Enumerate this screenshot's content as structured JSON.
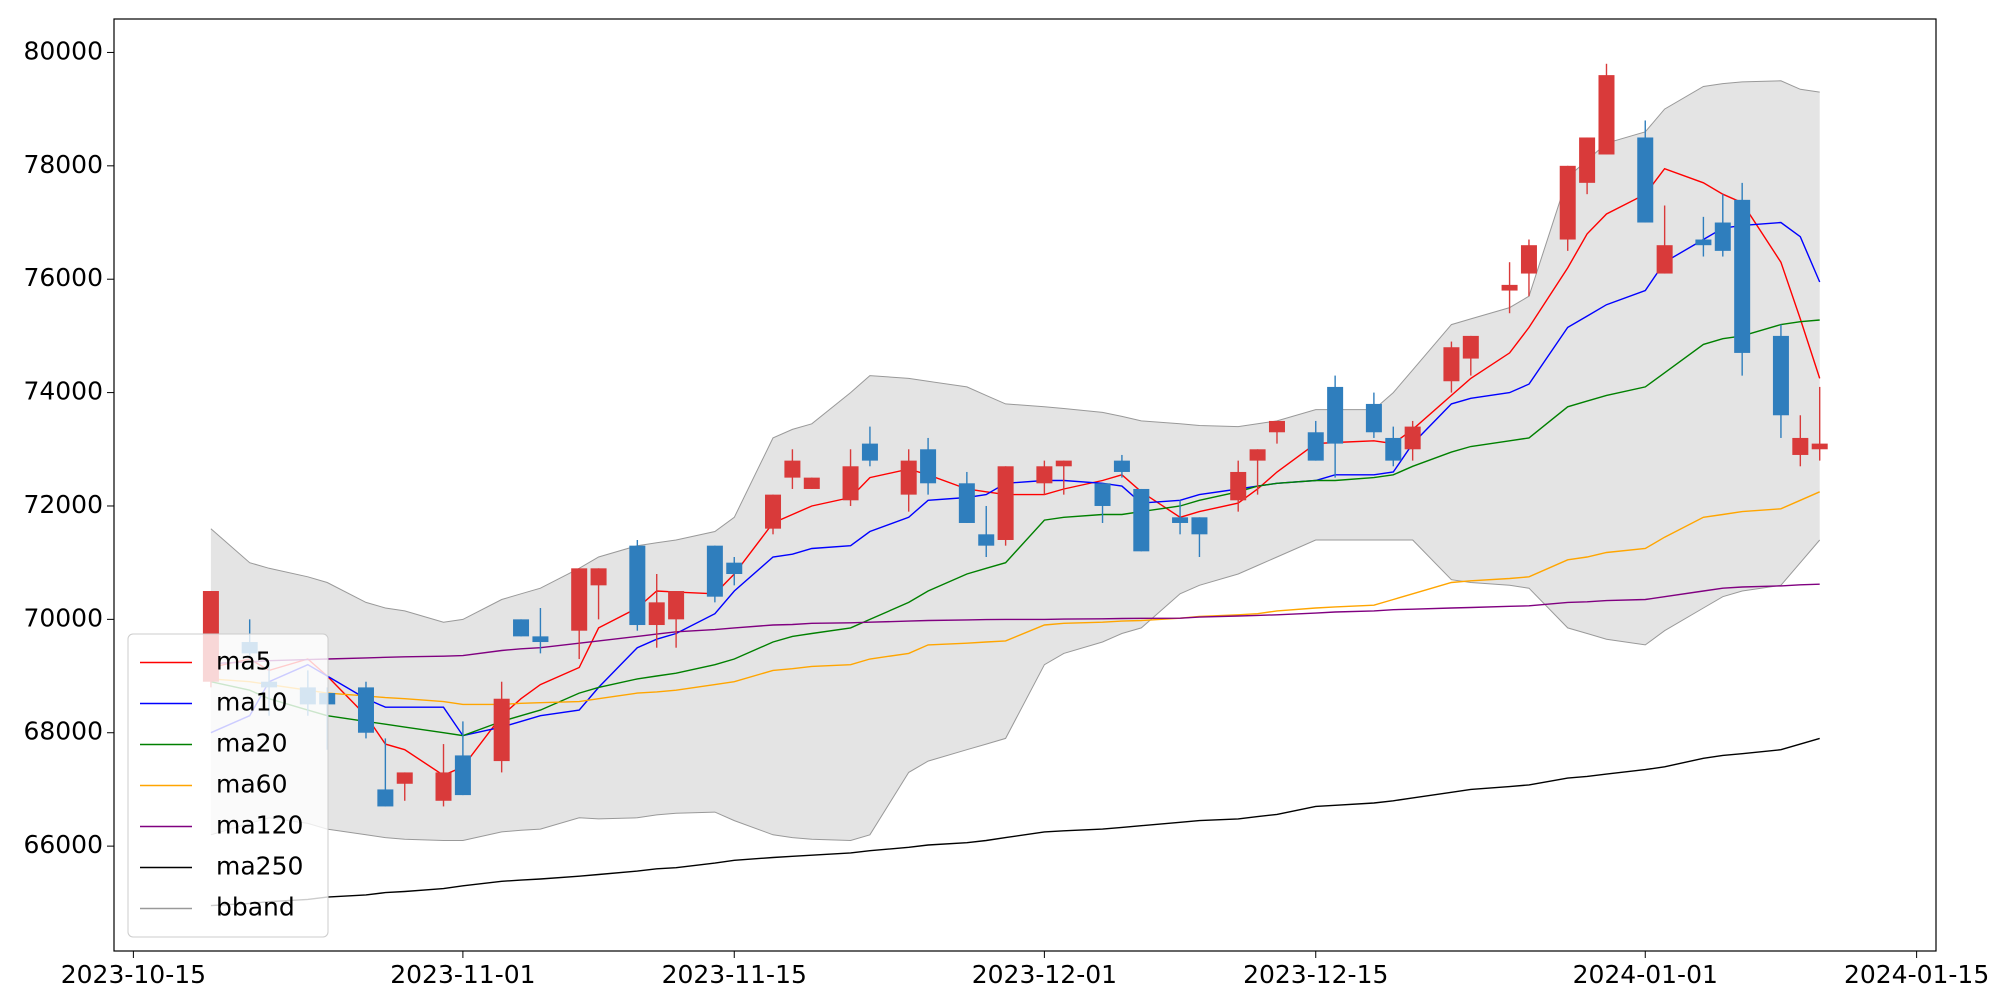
{
  "chart_data": {
    "type": "candlestick",
    "x": [
      "2023-10-19",
      "2023-10-21",
      "2023-10-22",
      "2023-10-24",
      "2023-10-25",
      "2023-10-27",
      "2023-10-28",
      "2023-10-29",
      "2023-10-31",
      "2023-11-01",
      "2023-11-03",
      "2023-11-04",
      "2023-11-05",
      "2023-11-07",
      "2023-11-08",
      "2023-11-10",
      "2023-11-11",
      "2023-11-12",
      "2023-11-14",
      "2023-11-15",
      "2023-11-17",
      "2023-11-18",
      "2023-11-19",
      "2023-11-21",
      "2023-11-22",
      "2023-11-24",
      "2023-11-25",
      "2023-11-27",
      "2023-11-28",
      "2023-11-29",
      "2023-12-01",
      "2023-12-02",
      "2023-12-04",
      "2023-12-05",
      "2023-12-06",
      "2023-12-08",
      "2023-12-09",
      "2023-12-11",
      "2023-12-12",
      "2023-12-13",
      "2023-12-15",
      "2023-12-16",
      "2023-12-18",
      "2023-12-19",
      "2023-12-20",
      "2023-12-22",
      "2023-12-23",
      "2023-12-25",
      "2023-12-26",
      "2023-12-28",
      "2023-12-29",
      "2023-12-30",
      "2024-01-01",
      "2024-01-02",
      "2024-01-04",
      "2024-01-05",
      "2024-01-06",
      "2024-01-08",
      "2024-01-09",
      "2024-01-10"
    ],
    "open": [
      68900,
      69600,
      68900,
      68800,
      68700,
      68800,
      67000,
      67100,
      66800,
      67600,
      67500,
      70000,
      69700,
      69800,
      70600,
      71300,
      69900,
      70000,
      71300,
      71000,
      71600,
      72500,
      72300,
      72100,
      73100,
      72200,
      73000,
      72400,
      71500,
      71400,
      72400,
      72700,
      72400,
      72800,
      72300,
      71800,
      71800,
      72100,
      72800,
      73300,
      73300,
      74100,
      73800,
      73200,
      73000,
      74200,
      74600,
      75800,
      76100,
      76700,
      77700,
      78200,
      78500,
      76100,
      76700,
      77000,
      77400,
      75000,
      72900,
      73000
    ],
    "high": [
      70500,
      70000,
      69200,
      69100,
      68800,
      68900,
      67900,
      67300,
      67800,
      68200,
      68900,
      70000,
      70200,
      70900,
      70900,
      71400,
      70800,
      70500,
      71300,
      71100,
      72200,
      73000,
      72500,
      73000,
      73400,
      73000,
      73200,
      72600,
      72000,
      72700,
      72800,
      72800,
      72400,
      72900,
      72300,
      72100,
      71800,
      72800,
      73000,
      73500,
      73500,
      74300,
      74000,
      73400,
      73500,
      74900,
      75000,
      76300,
      76700,
      78000,
      78500,
      79800,
      78800,
      77300,
      77100,
      77500,
      77700,
      75200,
      73600,
      74100
    ],
    "low": [
      68800,
      69300,
      68300,
      68300,
      67700,
      67900,
      66700,
      66800,
      66700,
      66900,
      67300,
      69700,
      69400,
      69300,
      70000,
      69800,
      69500,
      69500,
      70300,
      70600,
      71500,
      72300,
      72300,
      72000,
      72700,
      71900,
      72200,
      71700,
      71100,
      71300,
      72200,
      72200,
      71700,
      72500,
      71200,
      71500,
      71100,
      71900,
      72200,
      73100,
      72800,
      72500,
      73200,
      72700,
      72800,
      74000,
      74300,
      75400,
      75700,
      76500,
      77500,
      78200,
      77000,
      76100,
      76400,
      76400,
      74300,
      73200,
      72700,
      72800
    ],
    "close": [
      70500,
      69400,
      68800,
      68500,
      68500,
      68000,
      66700,
      67300,
      67300,
      66900,
      68600,
      69700,
      69600,
      70900,
      70900,
      69900,
      70300,
      70500,
      70400,
      70800,
      72200,
      72800,
      72500,
      72700,
      72800,
      72800,
      72400,
      71700,
      71300,
      72700,
      72700,
      72800,
      72000,
      72600,
      71200,
      71700,
      71500,
      72600,
      73000,
      73500,
      72800,
      73100,
      73300,
      72800,
      73400,
      74800,
      75000,
      75900,
      76600,
      78000,
      78500,
      79600,
      77000,
      76600,
      76600,
      76500,
      74700,
      73600,
      73200,
      73100
    ],
    "up_color": "#d93a3a",
    "down_color": "#2f7ebd",
    "series": [
      {
        "name": "ma5",
        "color": "#ff0000",
        "values": [
          69150,
          69300,
          69100,
          69300,
          69000,
          68300,
          67800,
          67700,
          67250,
          67400,
          68300,
          68600,
          68850,
          69150,
          69850,
          70200,
          70500,
          70480,
          70450,
          70800,
          71700,
          71850,
          72000,
          72150,
          72500,
          72650,
          72550,
          72300,
          72250,
          72200,
          72200,
          72300,
          72450,
          72550,
          72250,
          71800,
          71900,
          72050,
          72300,
          72600,
          73100,
          73120,
          73150,
          73100,
          73350,
          73950,
          74250,
          74700,
          75150,
          76200,
          76800,
          77150,
          77500,
          77950,
          77700,
          77500,
          77350,
          76300,
          75300,
          74250
        ]
      },
      {
        "name": "ma10",
        "color": "#0000ff",
        "values": [
          68000,
          68300,
          68900,
          69200,
          69000,
          68600,
          68450,
          68450,
          68450,
          67950,
          68100,
          68200,
          68300,
          68400,
          68800,
          69500,
          69650,
          69750,
          70100,
          70500,
          71100,
          71150,
          71250,
          71300,
          71550,
          71800,
          72100,
          72150,
          72200,
          72400,
          72450,
          72450,
          72400,
          72350,
          72050,
          72100,
          72200,
          72300,
          72350,
          72400,
          72450,
          72550,
          72550,
          72600,
          73100,
          73800,
          73900,
          74000,
          74150,
          75150,
          75350,
          75550,
          75800,
          76300,
          76700,
          76900,
          76950,
          77000,
          76750,
          75950
        ]
      },
      {
        "name": "ma20",
        "color": "#008000",
        "values": [
          68900,
          68750,
          68600,
          68400,
          68300,
          68200,
          68150,
          68100,
          68000,
          67950,
          68200,
          68300,
          68400,
          68700,
          68800,
          68950,
          69000,
          69050,
          69200,
          69300,
          69600,
          69700,
          69750,
          69850,
          70000,
          70300,
          70500,
          70800,
          70900,
          71000,
          71750,
          71800,
          71850,
          71850,
          71900,
          72000,
          72100,
          72250,
          72350,
          72400,
          72450,
          72450,
          72500,
          72550,
          72700,
          72950,
          73050,
          73150,
          73200,
          73750,
          73850,
          73950,
          74100,
          74350,
          74850,
          74950,
          75000,
          75200,
          75250,
          75280
        ]
      },
      {
        "name": "ma60",
        "color": "#ffa500",
        "values": [
          68950,
          68900,
          68850,
          68750,
          68700,
          68650,
          68620,
          68600,
          68550,
          68500,
          68500,
          68520,
          68530,
          68550,
          68600,
          68700,
          68720,
          68750,
          68850,
          68900,
          69100,
          69130,
          69170,
          69200,
          69300,
          69400,
          69550,
          69580,
          69600,
          69620,
          69900,
          69930,
          69950,
          69970,
          69980,
          70020,
          70050,
          70080,
          70100,
          70150,
          70200,
          70220,
          70250,
          70350,
          70450,
          70650,
          70680,
          70720,
          70750,
          71050,
          71100,
          71180,
          71250,
          71450,
          71800,
          71850,
          71900,
          71950,
          72100,
          72250
        ]
      },
      {
        "name": "ma120",
        "color": "#800080",
        "values": [
          69220,
          69250,
          69270,
          69290,
          69300,
          69320,
          69330,
          69340,
          69350,
          69360,
          69450,
          69480,
          69500,
          69580,
          69620,
          69700,
          69740,
          69780,
          69820,
          69850,
          69900,
          69910,
          69930,
          69940,
          69950,
          69970,
          69980,
          69990,
          69995,
          70000,
          70000,
          70005,
          70010,
          70015,
          70018,
          70020,
          70040,
          70060,
          70070,
          70080,
          70110,
          70130,
          70150,
          70170,
          70180,
          70200,
          70210,
          70230,
          70240,
          70300,
          70310,
          70330,
          70350,
          70400,
          70500,
          70550,
          70570,
          70590,
          70610,
          70620
        ]
      },
      {
        "name": "ma250",
        "color": "#000000",
        "values": [
          64950,
          64990,
          65020,
          65060,
          65100,
          65140,
          65180,
          65200,
          65250,
          65300,
          65380,
          65400,
          65420,
          65470,
          65500,
          65560,
          65600,
          65620,
          65700,
          65750,
          65800,
          65820,
          65840,
          65880,
          65920,
          65980,
          66020,
          66060,
          66100,
          66150,
          66250,
          66270,
          66300,
          66330,
          66360,
          66420,
          66450,
          66480,
          66520,
          66560,
          66700,
          66720,
          66760,
          66800,
          66850,
          66950,
          67000,
          67050,
          67080,
          67200,
          67230,
          67270,
          67350,
          67400,
          67550,
          67600,
          67630,
          67700,
          67800,
          67900
        ]
      }
    ],
    "band": {
      "name": "bband",
      "color": "#999999",
      "fill": "#e4e4e4",
      "upper": [
        71600,
        71000,
        70900,
        70750,
        70650,
        70300,
        70200,
        70150,
        69950,
        70000,
        70350,
        70450,
        70550,
        70900,
        71100,
        71300,
        71350,
        71400,
        71550,
        71800,
        73200,
        73350,
        73450,
        74000,
        74300,
        74250,
        74200,
        74100,
        73950,
        73800,
        73750,
        73720,
        73650,
        73580,
        73500,
        73450,
        73420,
        73400,
        73450,
        73500,
        73700,
        73700,
        73700,
        74000,
        74400,
        75200,
        75300,
        75500,
        75700,
        77800,
        78100,
        78400,
        78600,
        79000,
        79400,
        79450,
        79480,
        79500,
        79350,
        79300
      ],
      "lower": [
        66200,
        66400,
        66500,
        66400,
        66300,
        66200,
        66150,
        66120,
        66100,
        66100,
        66250,
        66280,
        66300,
        66500,
        66480,
        66500,
        66550,
        66580,
        66600,
        66450,
        66200,
        66150,
        66120,
        66100,
        66200,
        67300,
        67500,
        67700,
        67800,
        67900,
        69200,
        69400,
        69600,
        69750,
        69850,
        70450,
        70600,
        70800,
        70950,
        71100,
        71400,
        71400,
        71400,
        71400,
        71400,
        70700,
        70650,
        70600,
        70550,
        69850,
        69750,
        69650,
        69550,
        69800,
        70200,
        70400,
        70500,
        70600,
        71000,
        71400
      ]
    },
    "xlim": [
      "2023-10-14",
      "2024-01-16"
    ],
    "xticks": [
      "2023-10-15",
      "2023-11-01",
      "2023-11-15",
      "2023-12-01",
      "2023-12-15",
      "2024-01-01",
      "2024-01-15"
    ],
    "ylim": [
      64150,
      80590
    ],
    "yticks": [
      66000,
      68000,
      70000,
      72000,
      74000,
      76000,
      78000,
      80000
    ],
    "legend": "lower left"
  }
}
